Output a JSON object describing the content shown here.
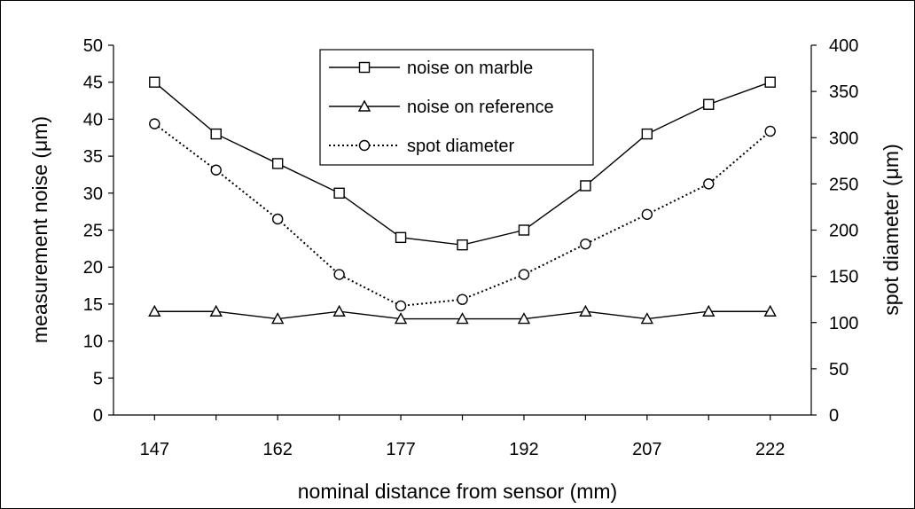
{
  "chart_data": {
    "type": "line",
    "xlabel": "nominal distance from sensor (mm)",
    "ylabel": "measurement noise (μm)",
    "y2label": "spot diameter (μm)",
    "x": [
      147,
      154.5,
      162,
      169.5,
      177,
      184.5,
      192,
      199.5,
      207,
      214.5,
      222
    ],
    "xticklabels": [
      "147",
      "162",
      "177",
      "192",
      "207",
      "222"
    ],
    "xtick_values": [
      147,
      162,
      177,
      192,
      207,
      222
    ],
    "ylim": [
      0,
      50
    ],
    "yticks": [
      0,
      5,
      10,
      15,
      20,
      25,
      30,
      35,
      40,
      45,
      50
    ],
    "y2lim": [
      0,
      400
    ],
    "y2ticks": [
      0,
      50,
      100,
      150,
      200,
      250,
      300,
      350,
      400
    ],
    "grid": false,
    "legend_position": "top-center",
    "series": [
      {
        "name": "noise on marble",
        "axis": "left",
        "marker": "square",
        "line": "solid",
        "values": [
          45,
          38,
          34,
          30,
          24,
          23,
          25,
          31,
          38,
          42,
          45
        ]
      },
      {
        "name": "noise on reference",
        "axis": "left",
        "marker": "triangle",
        "line": "solid",
        "values": [
          14,
          14,
          13,
          14,
          13,
          13,
          13,
          14,
          13,
          14,
          14
        ]
      },
      {
        "name": "spot diameter",
        "axis": "right",
        "marker": "circle",
        "line": "dotted",
        "values": [
          315,
          265,
          212,
          152,
          118,
          125,
          152,
          185,
          217,
          250,
          307
        ]
      }
    ]
  },
  "colors": {
    "line": "#000000",
    "background": "#ffffff"
  }
}
